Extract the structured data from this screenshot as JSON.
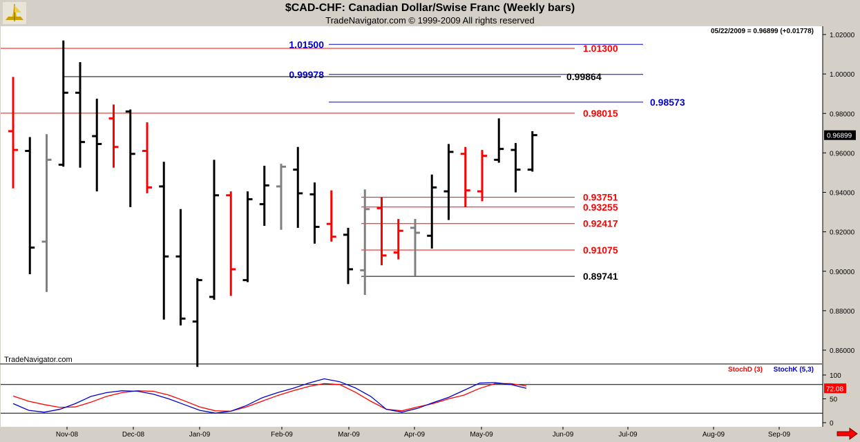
{
  "header": {
    "title": "$CAD-CHF:  Canadian Dollar/Swise Franc  (Weekly bars)",
    "copyright": "TradeNavigator.com © 1999-2009 All rights reserved"
  },
  "readout": "05/22/2009 = 0.96899 (+0.01778)",
  "watermark": "TradeNavigator.com",
  "colors": {
    "background": "#d4d0c8",
    "plot_bg": "#ffffff",
    "up_bar": "#000000",
    "down_bar": "#ff0000",
    "neutral_bar": "#808080",
    "level_blue": "#0000cc",
    "level_red": "#ff0000",
    "level_black": "#000000",
    "stochd": "#ff0000",
    "stochk": "#0000cc"
  },
  "icons": {
    "logo": "trade-navigator-logo",
    "scroll": "red-right-arrow-icon"
  },
  "chart_data": [
    {
      "type": "ohlc",
      "title": "$CAD-CHF:  Canadian Dollar/Swise Franc  (Weekly bars)",
      "ylim": [
        0.85,
        1.025
      ],
      "y_ticks": [
        "1.02000",
        "1.00000",
        "0.98000",
        "0.96000",
        "0.94000",
        "0.92000",
        "0.90000",
        "0.88000",
        "0.86000"
      ],
      "x_ticks": [
        "Nov-08",
        "Dec-08",
        "Jan-09",
        "Feb-09",
        "Mar-09",
        "Apr-09",
        "May-09",
        "Jun-09",
        "Jul-09",
        "Aug-09",
        "Sep-09"
      ],
      "last_value_label": "0.96899",
      "bars": [
        {
          "c": "red",
          "h": 0.9985,
          "l": 0.942,
          "o": 0.971,
          "cl": 0.9615
        },
        {
          "c": "black",
          "h": 0.968,
          "l": 0.8985,
          "o": 0.961,
          "cl": 0.912
        },
        {
          "c": "gray",
          "h": 0.9695,
          "l": 0.8895,
          "o": 0.915,
          "cl": 0.9565
        },
        {
          "c": "black",
          "h": 1.017,
          "l": 0.953,
          "o": 0.954,
          "cl": 0.9905
        },
        {
          "c": "black",
          "h": 1.006,
          "l": 0.9525,
          "o": 0.9905,
          "cl": 0.9655
        },
        {
          "c": "black",
          "h": 0.9875,
          "l": 0.9405,
          "o": 0.9685,
          "cl": 0.9645
        },
        {
          "c": "red",
          "h": 0.9845,
          "l": 0.9525,
          "o": 0.9775,
          "cl": 0.963
        },
        {
          "c": "black",
          "h": 0.982,
          "l": 0.9325,
          "o": 0.981,
          "cl": 0.9595
        },
        {
          "c": "red",
          "h": 0.9755,
          "l": 0.9395,
          "o": 0.961,
          "cl": 0.9425
        },
        {
          "c": "black",
          "h": 0.9555,
          "l": 0.8755,
          "o": 0.943,
          "cl": 0.9075
        },
        {
          "c": "black",
          "h": 0.9315,
          "l": 0.8725,
          "o": 0.9075,
          "cl": 0.876
        },
        {
          "c": "black",
          "h": 0.8965,
          "l": 0.8515,
          "o": 0.8745,
          "cl": 0.8955
        },
        {
          "c": "black",
          "h": 0.9565,
          "l": 0.8855,
          "o": 0.887,
          "cl": 0.9385
        },
        {
          "c": "red",
          "h": 0.9405,
          "l": 0.8875,
          "o": 0.9385,
          "cl": 0.901
        },
        {
          "c": "black",
          "h": 0.9405,
          "l": 0.8945,
          "o": 0.8955,
          "cl": 0.9365
        },
        {
          "c": "black",
          "h": 0.9535,
          "l": 0.923,
          "o": 0.934,
          "cl": 0.9435
        },
        {
          "c": "gray",
          "h": 0.9545,
          "l": 0.921,
          "o": 0.943,
          "cl": 0.953
        },
        {
          "c": "black",
          "h": 0.963,
          "l": 0.922,
          "o": 0.9515,
          "cl": 0.9395
        },
        {
          "c": "black",
          "h": 0.945,
          "l": 0.914,
          "o": 0.939,
          "cl": 0.9225
        },
        {
          "c": "red",
          "h": 0.941,
          "l": 0.915,
          "o": 0.924,
          "cl": 0.9175
        },
        {
          "c": "black",
          "h": 0.922,
          "l": 0.8935,
          "o": 0.9185,
          "cl": 0.901
        },
        {
          "c": "gray",
          "h": 0.9415,
          "l": 0.888,
          "o": 0.9005,
          "cl": 0.9315
        },
        {
          "c": "red",
          "h": 0.9375,
          "l": 0.903,
          "o": 0.932,
          "cl": 0.908
        },
        {
          "c": "red",
          "h": 0.9265,
          "l": 0.906,
          "o": 0.9095,
          "cl": 0.9205
        },
        {
          "c": "gray",
          "h": 0.9265,
          "l": 0.8975,
          "o": 0.922,
          "cl": 0.9195
        },
        {
          "c": "black",
          "h": 0.949,
          "l": 0.9115,
          "o": 0.918,
          "cl": 0.9425
        },
        {
          "c": "black",
          "h": 0.9645,
          "l": 0.926,
          "o": 0.9405,
          "cl": 0.9605
        },
        {
          "c": "red",
          "h": 0.963,
          "l": 0.9325,
          "o": 0.9595,
          "cl": 0.941
        },
        {
          "c": "red",
          "h": 0.9615,
          "l": 0.9355,
          "o": 0.9405,
          "cl": 0.9585
        },
        {
          "c": "black",
          "h": 0.9775,
          "l": 0.955,
          "o": 0.9565,
          "cl": 0.962
        },
        {
          "c": "black",
          "h": 0.965,
          "l": 0.94,
          "o": 0.9615,
          "cl": 0.9515
        },
        {
          "c": "black",
          "h": 0.971,
          "l": 0.9505,
          "o": 0.9515,
          "cl": 0.969
        }
      ],
      "levels": [
        {
          "label": "1.01500",
          "value": 1.015,
          "color": "blue",
          "label_pos": "left"
        },
        {
          "label": "1.01300",
          "value": 1.013,
          "color": "red",
          "label_pos": "right"
        },
        {
          "label": "0.99978",
          "value": 0.99978,
          "color": "blue",
          "label_pos": "left"
        },
        {
          "label": "0.99864",
          "value": 0.99864,
          "color": "black",
          "label_pos": "right"
        },
        {
          "label": "0.98573",
          "value": 0.98573,
          "color": "blue",
          "label_pos": "far-right"
        },
        {
          "label": "0.98015",
          "value": 0.98015,
          "color": "red",
          "label_pos": "right"
        },
        {
          "label": "0.93751",
          "value": 0.93751,
          "color": "red",
          "label_pos": "right"
        },
        {
          "label": "0.93255",
          "value": 0.93255,
          "color": "red",
          "label_pos": "right"
        },
        {
          "label": "0.92417",
          "value": 0.92417,
          "color": "red",
          "label_pos": "right"
        },
        {
          "label": "0.91075",
          "value": 0.91075,
          "color": "red",
          "label_pos": "right"
        },
        {
          "label": "0.89741",
          "value": 0.89741,
          "color": "black",
          "label_pos": "right"
        }
      ]
    },
    {
      "type": "line",
      "legend": [
        "StochD (3)",
        "StochK (5,3)"
      ],
      "ylim": [
        0,
        100
      ],
      "y_ticks": [
        "100",
        "50",
        "0"
      ],
      "reference_lines": [
        80,
        20
      ],
      "last_value_label": "72.08",
      "series": [
        {
          "name": "StochD (3)",
          "values": [
            56,
            45,
            38,
            32,
            33,
            43,
            55,
            63,
            67,
            66,
            58,
            46,
            33,
            25,
            24,
            33,
            45,
            57,
            67,
            76,
            82,
            80,
            64,
            45,
            28,
            25,
            33,
            40,
            50,
            58,
            72,
            82,
            82,
            77
          ]
        },
        {
          "name": "StochK (5,3)",
          "values": [
            40,
            26,
            22,
            28,
            40,
            55,
            63,
            67,
            66,
            60,
            50,
            38,
            26,
            20,
            24,
            36,
            52,
            63,
            72,
            83,
            92,
            86,
            73,
            55,
            28,
            22,
            30,
            42,
            53,
            68,
            83,
            84,
            80,
            72
          ]
        }
      ]
    }
  ]
}
